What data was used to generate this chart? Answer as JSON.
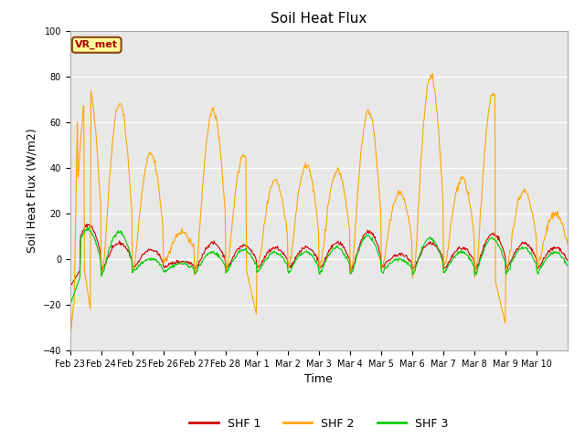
{
  "title": "Soil Heat Flux",
  "xlabel": "Time",
  "ylabel": "Soil Heat Flux (W/m2)",
  "ylim": [
    -40,
    100
  ],
  "yticks": [
    -40,
    -20,
    0,
    20,
    40,
    60,
    80,
    100
  ],
  "colors": {
    "SHF 1": "#cc0000",
    "SHF 2": "#ffa500",
    "SHF 3": "#00cc00"
  },
  "legend_labels": [
    "SHF 1",
    "SHF 2",
    "SHF 3"
  ],
  "annotation": "VR_met",
  "annotation_box_color": "#ffff99",
  "annotation_box_edge": "#8B4513",
  "annotation_text_color": "#aa0000",
  "background_color": "#e8e8e8",
  "plot_bg_color": "#e8e8e8",
  "fig_bg_color": "#ffffff",
  "grid_color": "#ffffff",
  "x_tick_labels": [
    "Feb 23",
    "Feb 24",
    "Feb 25",
    "Feb 26",
    "Feb 27",
    "Feb 28",
    "Mar 1",
    "Mar 2",
    "Mar 3",
    "Mar 4",
    "Mar 5",
    "Mar 6",
    "Mar 7",
    "Mar 8",
    "Mar 9",
    "Mar 10"
  ],
  "n_days": 16,
  "pts_per_day": 48
}
